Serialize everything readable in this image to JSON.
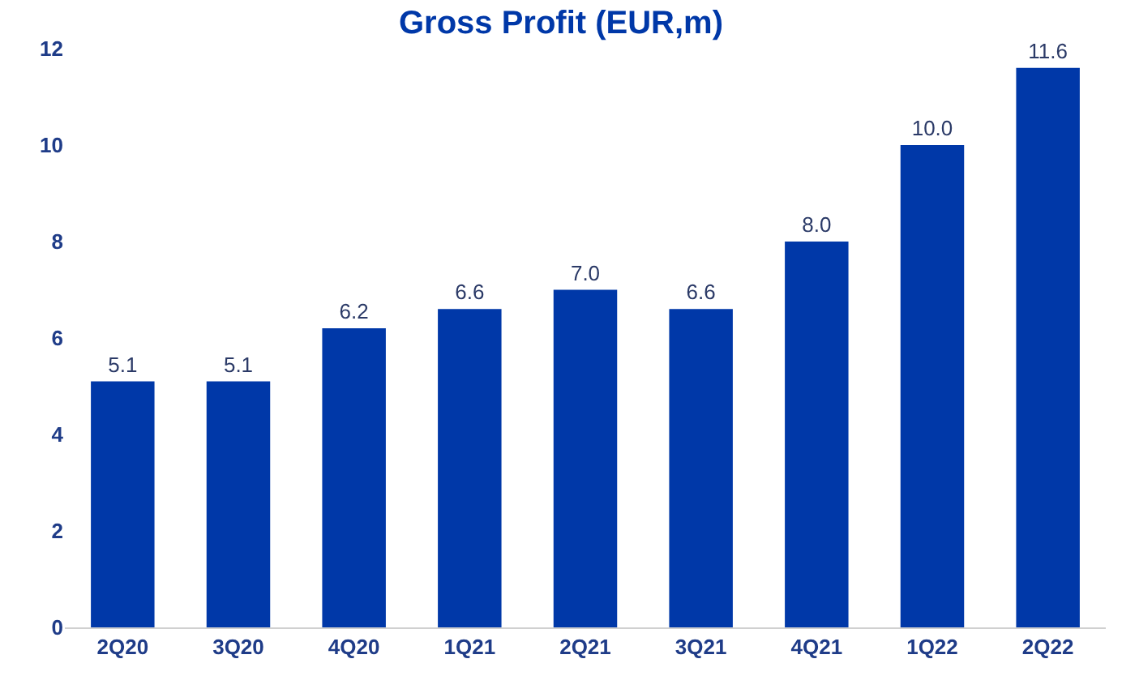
{
  "chart_data": {
    "type": "bar",
    "title": "Gross Profit (EUR,m)",
    "categories": [
      "2Q20",
      "3Q20",
      "4Q20",
      "1Q21",
      "2Q21",
      "3Q21",
      "4Q21",
      "1Q22",
      "2Q22"
    ],
    "values": [
      5.1,
      5.1,
      6.2,
      6.6,
      7.0,
      6.6,
      8.0,
      10.0,
      11.6
    ],
    "value_labels": [
      "5.1",
      "5.1",
      "6.2",
      "6.6",
      "7.0",
      "6.6",
      "8.0",
      "10.0",
      "11.6"
    ],
    "color": "#0038a8",
    "ylim": [
      0,
      12
    ],
    "yticks": [
      0,
      2,
      4,
      6,
      8,
      10,
      12
    ],
    "grid": false,
    "legend": false
  }
}
